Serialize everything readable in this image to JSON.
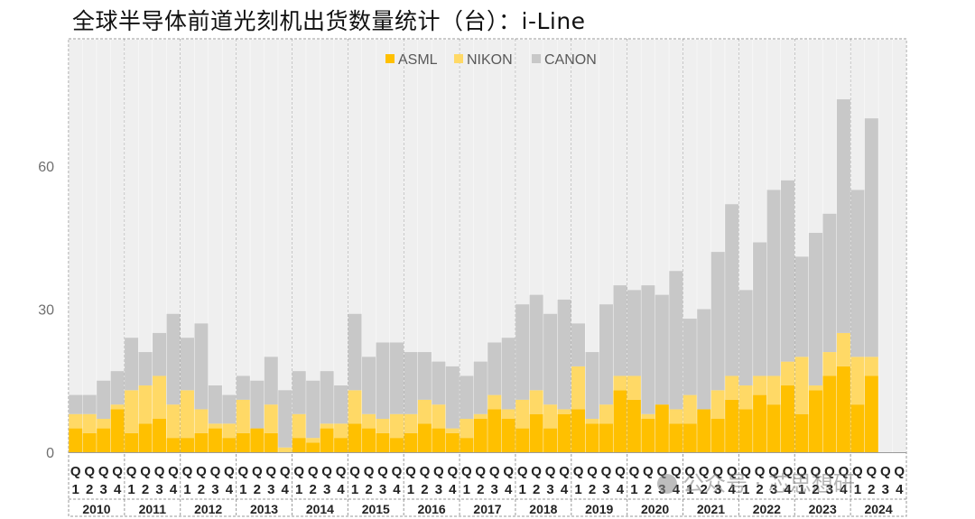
{
  "title": "全球半导体前道光刻机出货数量统计（台）：i-Line",
  "watermark": "公众号 · 芯思想研",
  "colors": {
    "ASML": "#FFC000",
    "NIKON": "#FFD966",
    "CANON": "#C8C8C8",
    "background_bar": "#EFEFEF"
  },
  "chart_data": {
    "type": "bar",
    "stacked": true,
    "title": "全球半导体前道光刻机出货数量统计（台）：i-Line",
    "ylim": [
      0,
      86
    ],
    "yticks": [
      0,
      30,
      60
    ],
    "legend": {
      "position": "top",
      "entries": [
        "ASML",
        "NIKON",
        "CANON"
      ]
    },
    "x_quarter_labels": [
      "Q1",
      "Q2",
      "Q3",
      "Q4"
    ],
    "years": [
      "2010",
      "2011",
      "2012",
      "2013",
      "2014",
      "2015",
      "2016",
      "2017",
      "2018",
      "2019",
      "2020",
      "2021",
      "2022",
      "2023",
      "2024"
    ],
    "categories": [
      "2010Q1",
      "2010Q2",
      "2010Q3",
      "2010Q4",
      "2011Q1",
      "2011Q2",
      "2011Q3",
      "2011Q4",
      "2012Q1",
      "2012Q2",
      "2012Q3",
      "2012Q4",
      "2013Q1",
      "2013Q2",
      "2013Q3",
      "2013Q4",
      "2014Q1",
      "2014Q2",
      "2014Q3",
      "2014Q4",
      "2015Q1",
      "2015Q2",
      "2015Q3",
      "2015Q4",
      "2016Q1",
      "2016Q2",
      "2016Q3",
      "2016Q4",
      "2017Q1",
      "2017Q2",
      "2017Q3",
      "2017Q4",
      "2018Q1",
      "2018Q2",
      "2018Q3",
      "2018Q4",
      "2019Q1",
      "2019Q2",
      "2019Q3",
      "2019Q4",
      "2020Q1",
      "2020Q2",
      "2020Q3",
      "2020Q4",
      "2021Q1",
      "2021Q2",
      "2021Q3",
      "2021Q4",
      "2022Q1",
      "2022Q2",
      "2022Q3",
      "2022Q4",
      "2023Q1",
      "2023Q2",
      "2023Q3",
      "2023Q4",
      "2024Q1",
      "2024Q2",
      "2024Q3",
      "2024Q4"
    ],
    "series": [
      {
        "name": "ASML",
        "values": [
          5,
          4,
          5,
          9,
          4,
          6,
          7,
          3,
          3,
          4,
          5,
          3,
          4,
          5,
          4,
          0,
          3,
          2,
          5,
          3,
          6,
          5,
          4,
          3,
          4,
          6,
          5,
          4,
          3,
          7,
          9,
          7,
          5,
          8,
          5,
          8,
          9,
          6,
          6,
          13,
          11,
          7,
          10,
          6,
          6,
          9,
          7,
          11,
          9,
          12,
          10,
          14,
          8,
          13,
          16,
          18,
          10,
          16,
          0,
          0
        ]
      },
      {
        "name": "NIKON",
        "values": [
          3,
          4,
          2,
          1,
          9,
          8,
          9,
          7,
          10,
          5,
          1,
          3,
          7,
          0,
          6,
          1,
          5,
          1,
          1,
          3,
          7,
          3,
          3,
          5,
          4,
          5,
          5,
          1,
          4,
          1,
          3,
          2,
          6,
          5,
          5,
          1,
          9,
          1,
          4,
          3,
          5,
          1,
          0,
          3,
          6,
          0,
          6,
          5,
          5,
          4,
          6,
          5,
          12,
          1,
          5,
          7,
          10,
          4,
          0,
          0
        ]
      },
      {
        "name": "CANON",
        "values": [
          4,
          4,
          8,
          7,
          11,
          7,
          9,
          19,
          11,
          18,
          8,
          6,
          5,
          10,
          10,
          12,
          9,
          12,
          11,
          8,
          16,
          12,
          16,
          15,
          13,
          10,
          9,
          13,
          9,
          11,
          11,
          15,
          20,
          20,
          19,
          23,
          9,
          14,
          21,
          19,
          18,
          27,
          23,
          29,
          16,
          21,
          29,
          36,
          20,
          28,
          39,
          38,
          21,
          32,
          29,
          49,
          35,
          50,
          0,
          0
        ]
      }
    ]
  }
}
